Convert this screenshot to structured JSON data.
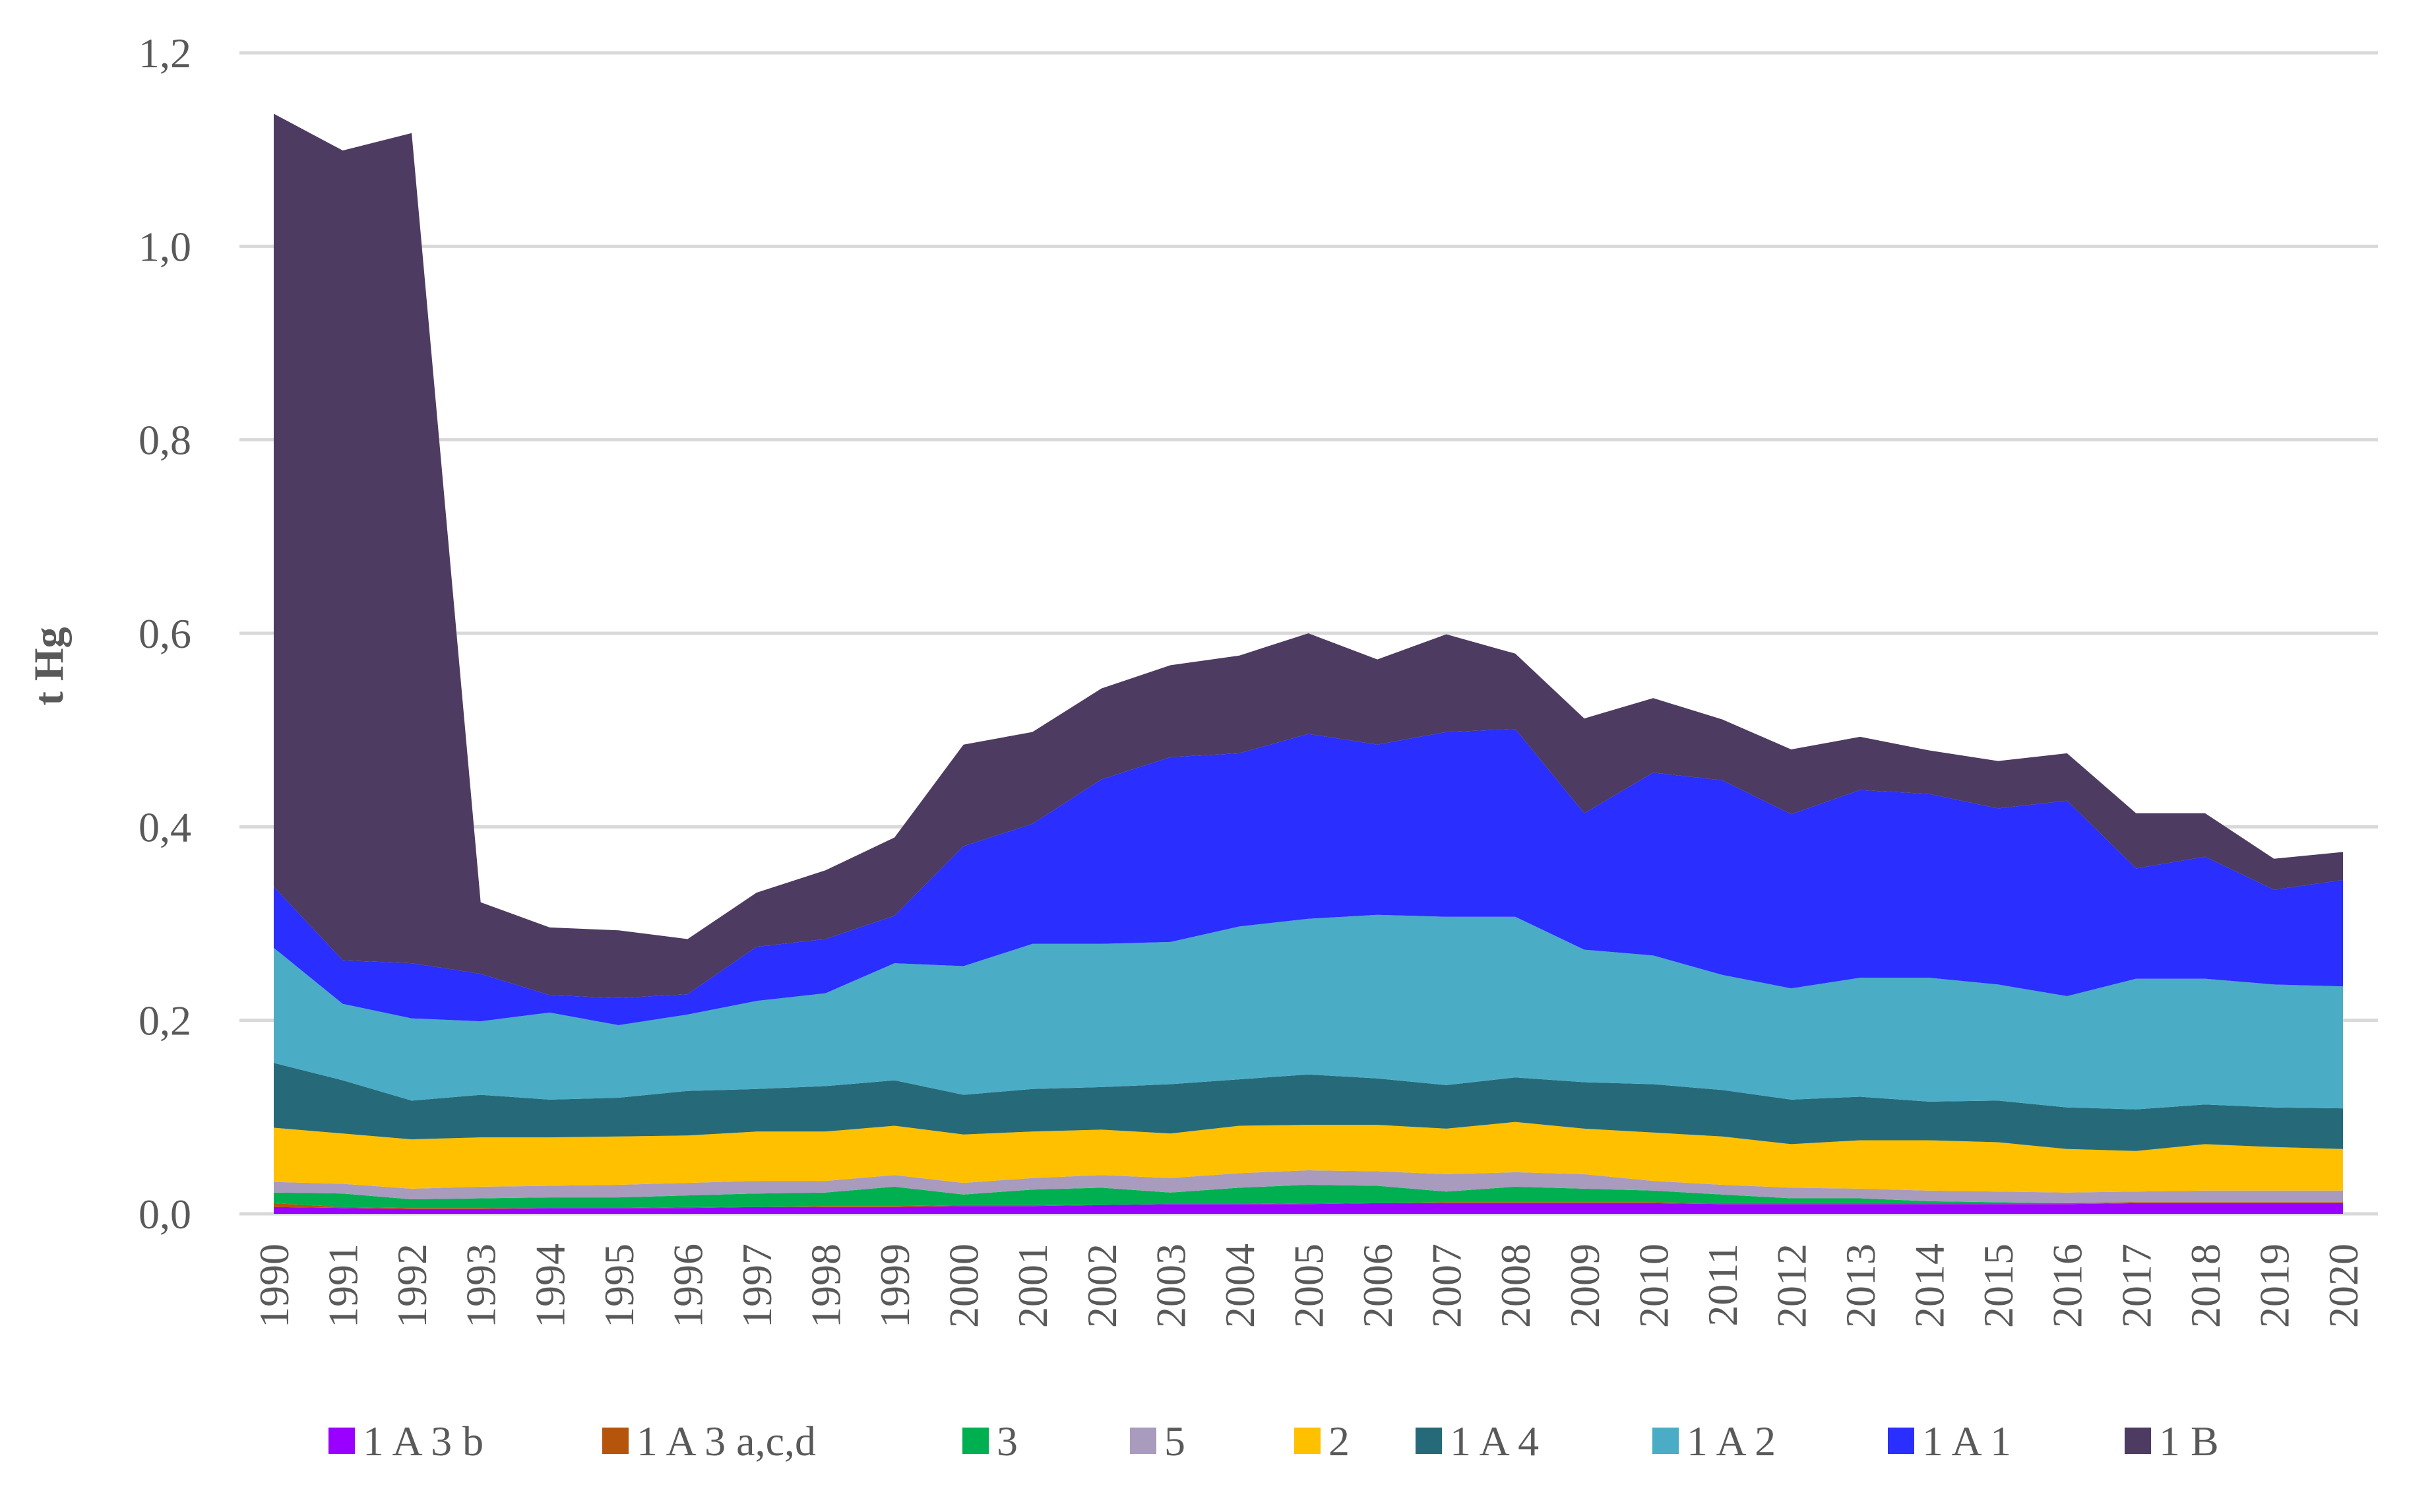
{
  "chart_data": {
    "type": "area",
    "stacked": true,
    "title": "",
    "xlabel": "",
    "ylabel": "t Hg",
    "ylim": [
      0,
      1.2
    ],
    "yticks": [
      "0,0",
      "0,2",
      "0,4",
      "0,6",
      "0,8",
      "1,0",
      "1,2"
    ],
    "ytick_values": [
      0,
      0.2,
      0.4,
      0.6,
      0.8,
      1.0,
      1.2
    ],
    "grid": true,
    "legend_position": "bottom",
    "categories": [
      "1990",
      "1991",
      "1992",
      "1993",
      "1994",
      "1995",
      "1996",
      "1997",
      "1998",
      "1999",
      "2000",
      "2001",
      "2002",
      "2003",
      "2004",
      "2005",
      "2006",
      "2007",
      "2008",
      "2009",
      "2010",
      "2011",
      "2012",
      "2013",
      "2014",
      "2015",
      "2016",
      "2017",
      "2018",
      "2019",
      "2020"
    ],
    "series": [
      {
        "name": "1 A 3 b",
        "color": "#9900ff",
        "values": [
          0.007,
          0.006,
          0.005,
          0.005,
          0.006,
          0.006,
          0.006,
          0.007,
          0.007,
          0.007,
          0.008,
          0.008,
          0.009,
          0.01,
          0.01,
          0.01,
          0.011,
          0.011,
          0.011,
          0.011,
          0.011,
          0.01,
          0.01,
          0.01,
          0.01,
          0.01,
          0.01,
          0.011,
          0.011,
          0.011,
          0.011
        ]
      },
      {
        "name": "1 A 3 a,c,d",
        "color": "#b5540b",
        "values": [
          0.004,
          0.001,
          0.001,
          0.001,
          0.0,
          0.0,
          0.001,
          0.0,
          0.001,
          0.001,
          0.001,
          0.001,
          0.0,
          0.0,
          0.0,
          0.001,
          0.0,
          0.001,
          0.001,
          0.001,
          0.001,
          0.001,
          0.001,
          0.001,
          0.001,
          0.001,
          0.001,
          0.001,
          0.001,
          0.001,
          0.001
        ]
      },
      {
        "name": "3",
        "color": "#00b050",
        "values": [
          0.011,
          0.014,
          0.009,
          0.01,
          0.011,
          0.011,
          0.012,
          0.014,
          0.014,
          0.02,
          0.011,
          0.016,
          0.018,
          0.012,
          0.017,
          0.019,
          0.018,
          0.011,
          0.016,
          0.014,
          0.012,
          0.009,
          0.005,
          0.005,
          0.002,
          0.001,
          0.0,
          0.0,
          0.0,
          0.0,
          0.0
        ]
      },
      {
        "name": "5",
        "color": "#a99bbd",
        "values": [
          0.011,
          0.01,
          0.011,
          0.012,
          0.012,
          0.013,
          0.013,
          0.013,
          0.012,
          0.012,
          0.012,
          0.012,
          0.013,
          0.015,
          0.015,
          0.015,
          0.015,
          0.018,
          0.015,
          0.015,
          0.01,
          0.01,
          0.011,
          0.01,
          0.011,
          0.011,
          0.011,
          0.011,
          0.012,
          0.012,
          0.012
        ]
      },
      {
        "name": "2",
        "color": "#ffc000",
        "values": [
          0.056,
          0.052,
          0.051,
          0.051,
          0.05,
          0.05,
          0.049,
          0.051,
          0.051,
          0.051,
          0.05,
          0.048,
          0.047,
          0.046,
          0.049,
          0.047,
          0.048,
          0.047,
          0.052,
          0.047,
          0.05,
          0.05,
          0.045,
          0.05,
          0.052,
          0.051,
          0.045,
          0.042,
          0.048,
          0.045,
          0.043
        ]
      },
      {
        "name": "1 A 4",
        "color": "#266a7a",
        "values": [
          0.067,
          0.055,
          0.04,
          0.044,
          0.039,
          0.04,
          0.046,
          0.044,
          0.047,
          0.047,
          0.041,
          0.044,
          0.044,
          0.051,
          0.048,
          0.052,
          0.048,
          0.045,
          0.046,
          0.048,
          0.05,
          0.048,
          0.046,
          0.045,
          0.04,
          0.043,
          0.043,
          0.043,
          0.041,
          0.041,
          0.042
        ]
      },
      {
        "name": "1 A 2",
        "color": "#4bacc6",
        "values": [
          0.119,
          0.079,
          0.085,
          0.076,
          0.09,
          0.075,
          0.079,
          0.091,
          0.096,
          0.121,
          0.133,
          0.15,
          0.148,
          0.147,
          0.158,
          0.161,
          0.169,
          0.174,
          0.166,
          0.137,
          0.133,
          0.119,
          0.115,
          0.123,
          0.128,
          0.12,
          0.115,
          0.135,
          0.13,
          0.127,
          0.126
        ]
      },
      {
        "name": "1 A 1",
        "color": "#2a2eff",
        "values": [
          0.063,
          0.045,
          0.057,
          0.049,
          0.018,
          0.028,
          0.021,
          0.056,
          0.056,
          0.049,
          0.124,
          0.124,
          0.17,
          0.191,
          0.179,
          0.191,
          0.176,
          0.191,
          0.194,
          0.141,
          0.189,
          0.201,
          0.18,
          0.194,
          0.19,
          0.182,
          0.202,
          0.114,
          0.126,
          0.098,
          0.11
        ]
      },
      {
        "name": "1 B",
        "color": "#4d3b62",
        "values": [
          0.799,
          0.837,
          0.858,
          0.074,
          0.07,
          0.07,
          0.057,
          0.056,
          0.071,
          0.081,
          0.105,
          0.095,
          0.094,
          0.095,
          0.101,
          0.104,
          0.088,
          0.101,
          0.078,
          0.098,
          0.077,
          0.063,
          0.067,
          0.055,
          0.045,
          0.049,
          0.049,
          0.057,
          0.045,
          0.032,
          0.029
        ]
      }
    ]
  }
}
